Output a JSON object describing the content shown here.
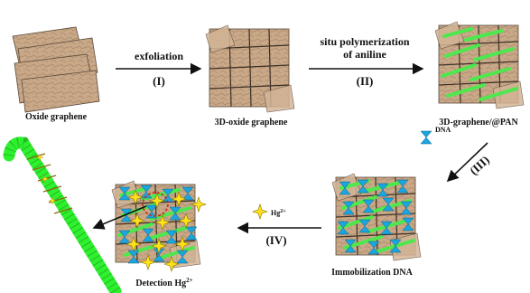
{
  "stages": {
    "oxide_graphene": "Oxide graphene",
    "oxide_3d": "3D-oxide graphene",
    "graphene_pan": "3D-graphene/@PAN",
    "immobilization": "Immobilization  DNA",
    "detection": "Detection Hg"
  },
  "steps": {
    "s1_text": "exfoliation",
    "s1_num": "(I)",
    "s2_text_line1": "situ polymerization",
    "s2_text_line2": "of aniline",
    "s2_num": "(II)",
    "s3_num": "(III)",
    "s4_num": "(IV)"
  },
  "legend": {
    "dna": "DNA",
    "hg": "Hg",
    "charge": "2+"
  },
  "colors": {
    "sheet": "#c9a888",
    "sheet_edge": "#5a4a3a",
    "pan_green": "#4ee84e",
    "dna_blue": "#1aa6e0",
    "hg_yellow": "#ffe21a",
    "probe_green": "#2ef02e",
    "highlight_red": "#d62020"
  }
}
